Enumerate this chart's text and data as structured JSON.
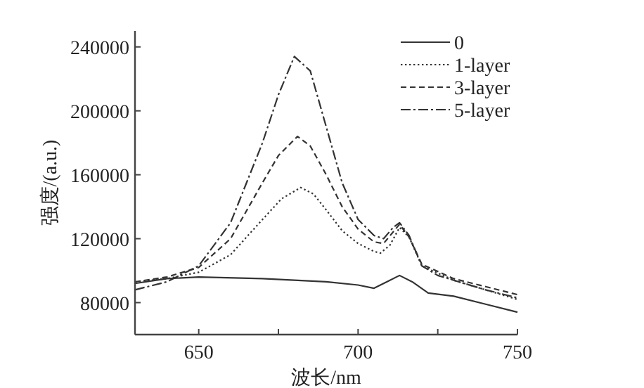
{
  "chart_data": {
    "type": "line",
    "xlabel": "波长/nm",
    "ylabel": "强度/(a.u.)",
    "xlim": [
      630,
      750
    ],
    "xticks": [
      650,
      {
        "value": 675,
        "label": null
      },
      700,
      {
        "value": 725,
        "label": null
      },
      750
    ],
    "ylim": [
      60000,
      250000
    ],
    "yticks": [
      80000,
      120000,
      160000,
      200000,
      240000
    ],
    "grid": false,
    "legend": "top right",
    "series": [
      {
        "name": "0",
        "color": "#333333",
        "line_style": "solid",
        "x": [
          630,
          640,
          650,
          670,
          690,
          700,
          705,
          709,
          713,
          717,
          722,
          730,
          740,
          750
        ],
        "values": [
          92000,
          95000,
          96000,
          95000,
          93000,
          91000,
          89000,
          93000,
          97000,
          93000,
          86000,
          84000,
          79000,
          74000
        ]
      },
      {
        "name": "1-layer",
        "color": "#333333",
        "line_style": "dotted",
        "x": [
          630,
          640,
          650,
          660,
          670,
          676,
          682,
          686,
          690,
          695,
          700,
          705,
          707,
          710,
          713,
          716,
          720,
          730,
          740,
          750
        ],
        "values": [
          93000,
          95000,
          99000,
          110000,
          132000,
          145000,
          152000,
          148000,
          138000,
          125000,
          117000,
          112000,
          111000,
          116000,
          127000,
          121000,
          103000,
          94000,
          88000,
          82000
        ]
      },
      {
        "name": "3-layer",
        "color": "#333333",
        "line_style": "dashed",
        "x": [
          630,
          640,
          650,
          660,
          670,
          675,
          681,
          685,
          690,
          695,
          700,
          705,
          708,
          713,
          716,
          720,
          730,
          740,
          750
        ],
        "values": [
          93000,
          96000,
          102000,
          120000,
          155000,
          172000,
          184000,
          178000,
          160000,
          140000,
          126000,
          118000,
          117000,
          129000,
          121000,
          104000,
          95000,
          90000,
          85000
        ]
      },
      {
        "name": "5-layer",
        "color": "#333333",
        "line_style": "dashdot",
        "x": [
          630,
          640,
          650,
          660,
          670,
          675,
          680,
          685,
          690,
          695,
          700,
          705,
          708,
          711,
          713,
          716,
          720,
          725,
          730,
          740,
          750
        ],
        "values": [
          88000,
          93000,
          103000,
          130000,
          180000,
          210000,
          234000,
          225000,
          190000,
          155000,
          132000,
          122000,
          120000,
          127000,
          130000,
          122000,
          103000,
          97000,
          94000,
          88000,
          83000
        ]
      }
    ]
  }
}
